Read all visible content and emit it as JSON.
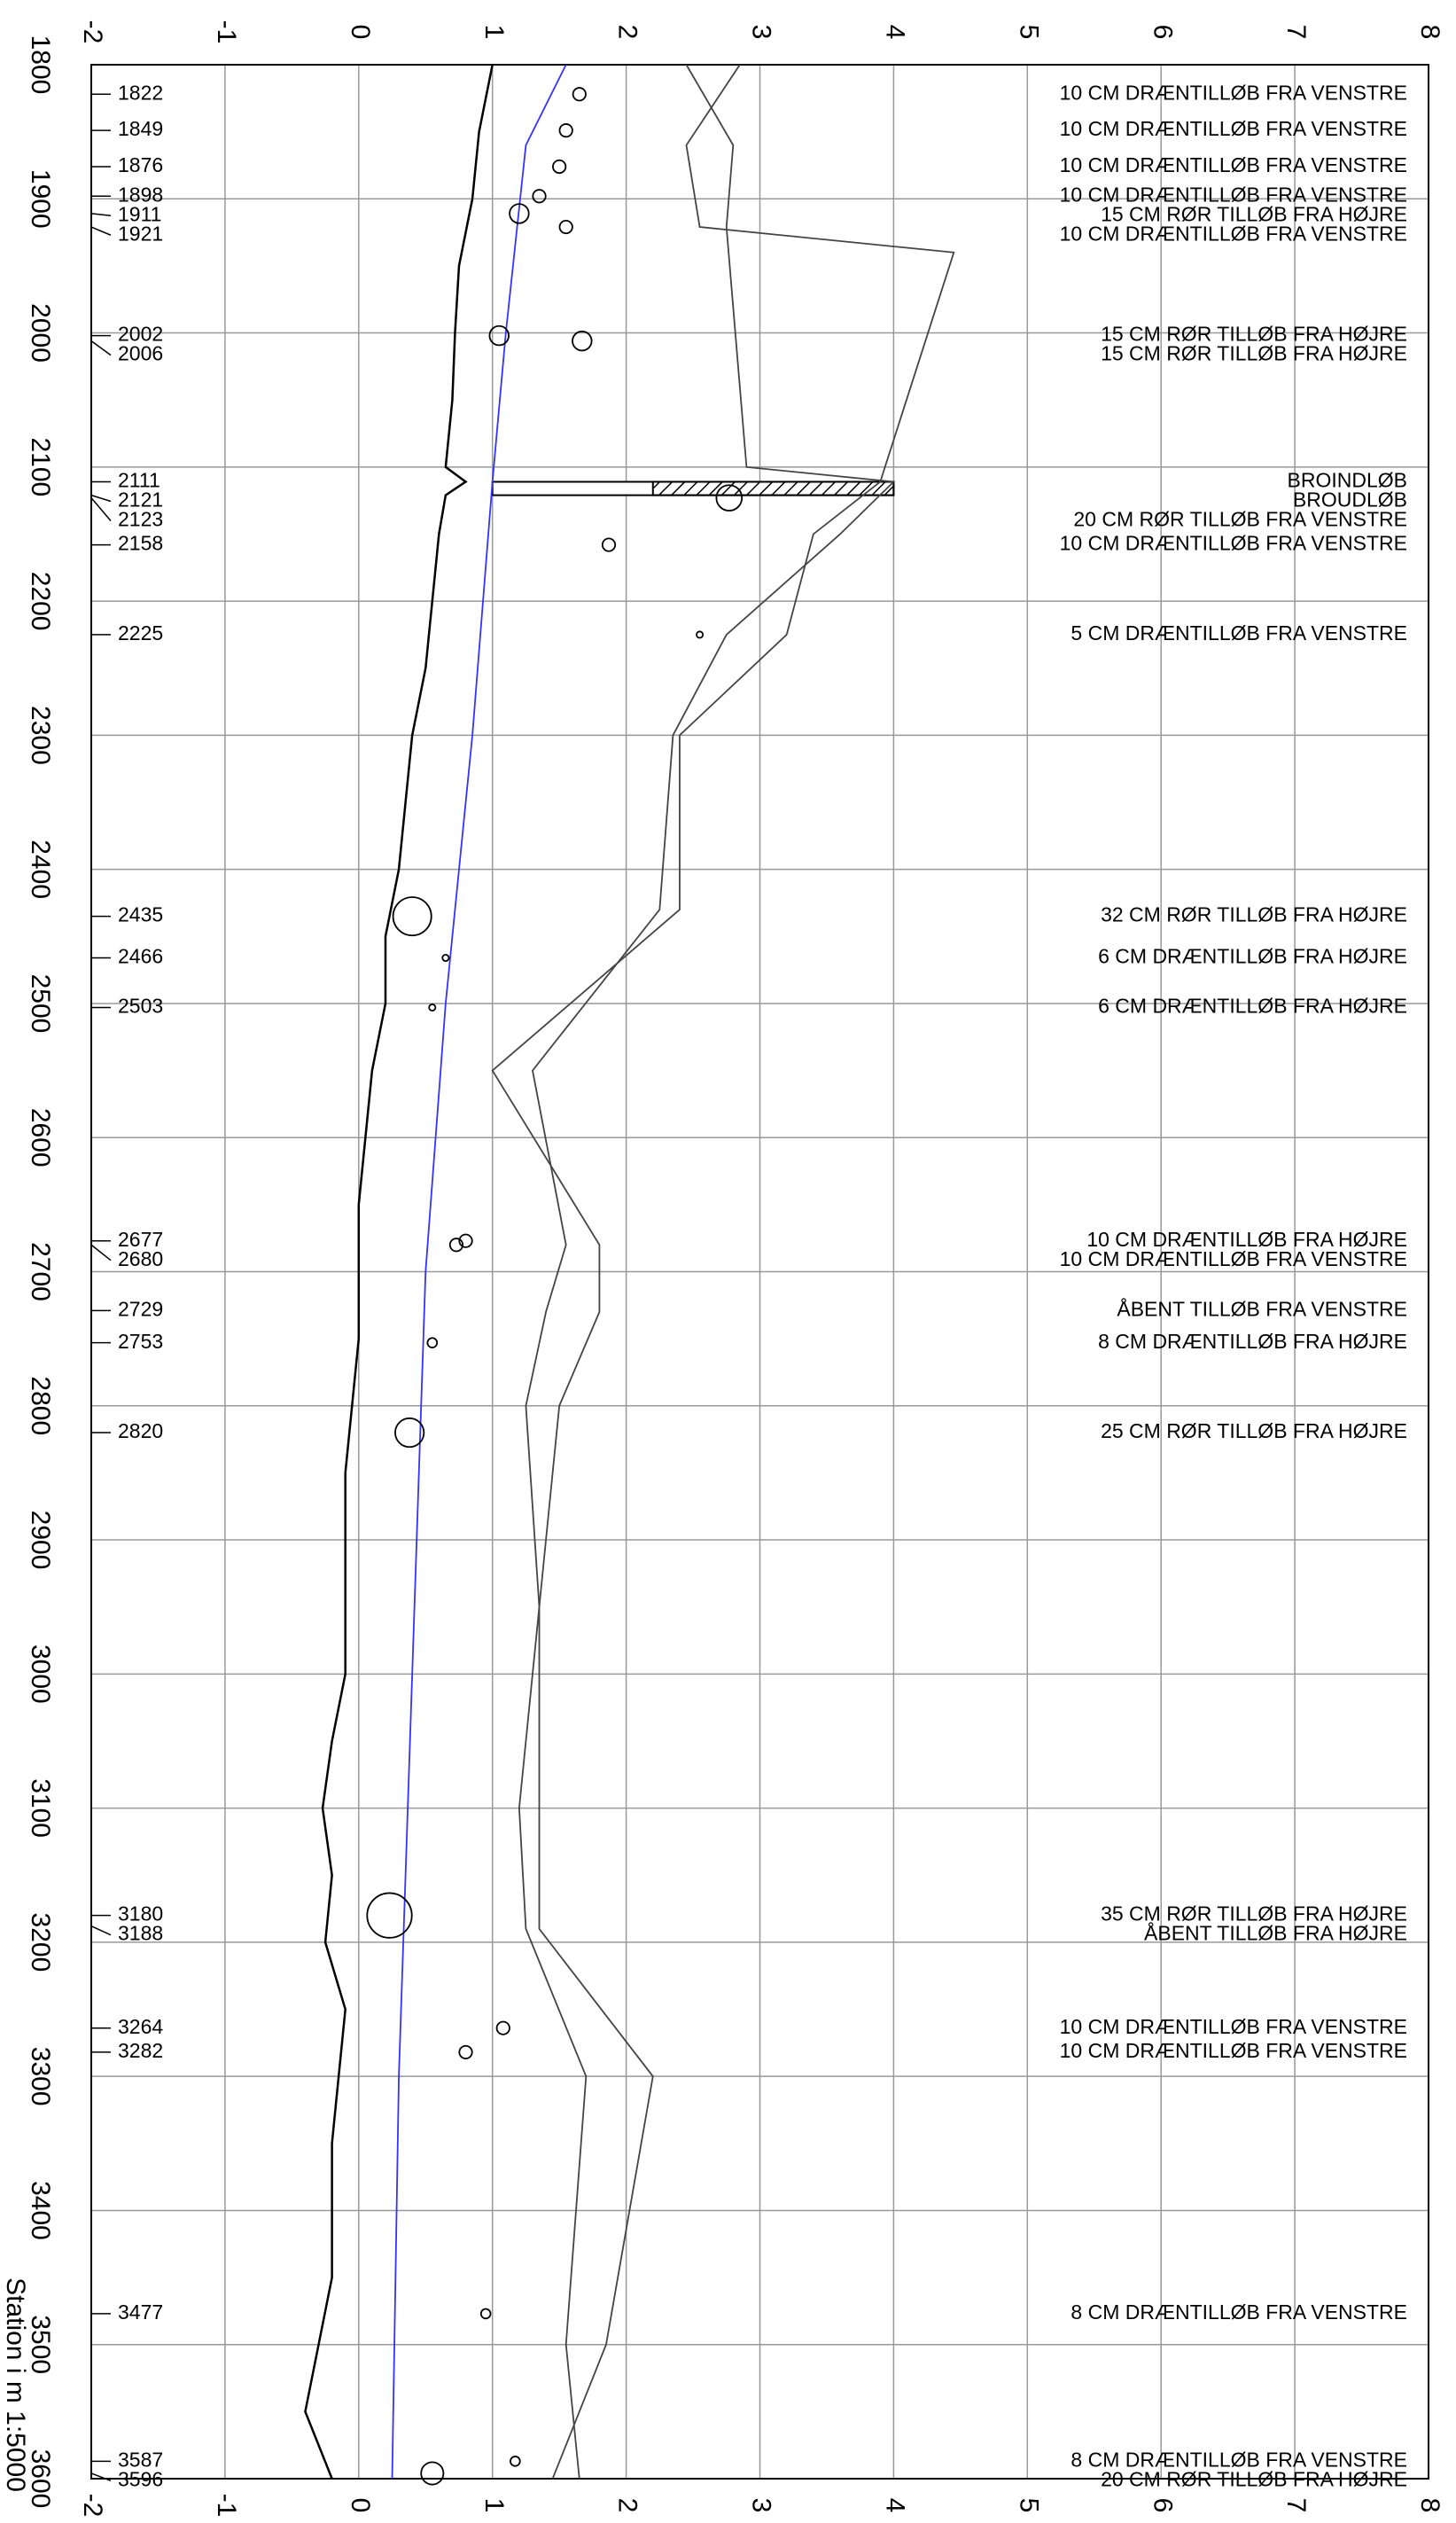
{
  "chart_data": {
    "type": "line",
    "xlabel": "Station i m  1:5000",
    "xlim": [
      -2,
      8
    ],
    "xticks": [
      -2,
      -1,
      0,
      1,
      2,
      3,
      4,
      5,
      6,
      7,
      8
    ],
    "ylim": [
      1800,
      3600
    ],
    "yticks": [
      1800,
      1900,
      2000,
      2100,
      2200,
      2300,
      2400,
      2500,
      2600,
      2700,
      2800,
      2900,
      3000,
      3100,
      3200,
      3300,
      3400,
      3500,
      3600
    ],
    "grid": true,
    "series": [
      {
        "color": "#000000",
        "stations": [
          1800,
          1850,
          1900,
          1950,
          2000,
          2050,
          2100,
          2111,
          2121,
          2150,
          2200,
          2250,
          2300,
          2350,
          2400,
          2450,
          2500,
          2550,
          2600,
          2650,
          2700,
          2750,
          2800,
          2850,
          2900,
          2950,
          3000,
          3050,
          3100,
          3150,
          3200,
          3250,
          3300,
          3350,
          3400,
          3450,
          3500,
          3550,
          3600
        ],
        "values": [
          1.0,
          0.9,
          0.85,
          0.75,
          0.72,
          0.7,
          0.65,
          0.8,
          0.65,
          0.6,
          0.55,
          0.5,
          0.4,
          0.35,
          0.3,
          0.2,
          0.2,
          0.1,
          0.05,
          0.0,
          0.0,
          0.0,
          -0.05,
          -0.1,
          -0.1,
          -0.1,
          -0.1,
          -0.2,
          -0.27,
          -0.2,
          -0.25,
          -0.1,
          -0.15,
          -0.2,
          -0.2,
          -0.2,
          -0.3,
          -0.4,
          -0.2
        ]
      },
      {
        "color": "#3333ff",
        "stations": [
          1800,
          1860,
          2000,
          2111,
          2300,
          2500,
          2700,
          3000,
          3300,
          3600
        ],
        "values": [
          1.55,
          1.25,
          1.1,
          1.0,
          0.85,
          0.65,
          0.5,
          0.4,
          0.3,
          0.25
        ]
      },
      {
        "color": "#444444",
        "stations": [
          1800,
          1860,
          1921,
          1940,
          2111,
          2150,
          2225,
          2300,
          2430,
          2550,
          2680,
          2730,
          2800,
          2950,
          3100,
          3190,
          3300,
          3500,
          3600
        ],
        "values": [
          2.85,
          2.45,
          2.55,
          4.45,
          3.9,
          3.4,
          3.2,
          2.4,
          2.4,
          1.0,
          1.8,
          1.8,
          1.5,
          1.35,
          1.35,
          1.35,
          2.2,
          1.85,
          1.45
        ]
      },
      {
        "color": "#444444",
        "stations": [
          1800,
          1860,
          1921,
          2100,
          2111,
          2150,
          2225,
          2300,
          2430,
          2550,
          2680,
          2730,
          2800,
          2950,
          3100,
          3190,
          3300,
          3500,
          3600
        ],
        "values": [
          2.45,
          2.8,
          2.75,
          2.9,
          4.0,
          3.6,
          2.75,
          2.35,
          2.25,
          1.3,
          1.55,
          1.4,
          1.25,
          1.35,
          1.2,
          1.25,
          1.7,
          1.55,
          1.65
        ]
      }
    ],
    "culvert": {
      "stations": [
        2111,
        2121
      ],
      "x": [
        1.0,
        4.0
      ],
      "hatch_from": 2.2
    },
    "inlets": [
      {
        "station": 1822,
        "value": 1.65,
        "size": 4,
        "label": "10 CM DRÆNTILLØB FRA VENSTRE"
      },
      {
        "station": 1849,
        "value": 1.55,
        "size": 4,
        "label": "10 CM DRÆNTILLØB FRA VENSTRE"
      },
      {
        "station": 1876,
        "value": 1.5,
        "size": 4,
        "label": "10 CM DRÆNTILLØB FRA VENSTRE"
      },
      {
        "station": 1898,
        "value": 1.35,
        "size": 4,
        "label": "10 CM DRÆNTILLØB FRA VENSTRE"
      },
      {
        "station": 1911,
        "value": 1.2,
        "size": 6,
        "label": "15 CM RØR TILLØB FRA HØJRE"
      },
      {
        "station": 1921,
        "value": 1.55,
        "size": 4,
        "label": "10 CM DRÆNTILLØB FRA VENSTRE"
      },
      {
        "station": 2002,
        "value": 1.05,
        "size": 6,
        "label": "15 CM RØR TILLØB FRA HØJRE"
      },
      {
        "station": 2006,
        "value": 1.67,
        "size": 6,
        "label": "15 CM RØR TILLØB FRA HØJRE"
      },
      {
        "station": 2111,
        "value": null,
        "size": null,
        "label": "BROINDLØB"
      },
      {
        "station": 2121,
        "value": null,
        "size": null,
        "label": "BROUDLØB"
      },
      {
        "station": 2123,
        "value": 2.77,
        "size": 8,
        "label": "20 CM RØR TILLØB FRA VENSTRE"
      },
      {
        "station": 2158,
        "value": 1.87,
        "size": 4,
        "label": "10 CM DRÆNTILLØB FRA VENSTRE"
      },
      {
        "station": 2225,
        "value": 2.55,
        "size": 2,
        "label": "5 CM DRÆNTILLØB FRA VENSTRE"
      },
      {
        "station": 2435,
        "value": 0.4,
        "size": 12,
        "label": "32 CM RØR TILLØB FRA HØJRE"
      },
      {
        "station": 2466,
        "value": 0.65,
        "size": 2,
        "label": "6 CM DRÆNTILLØB FRA HØJRE"
      },
      {
        "station": 2503,
        "value": 0.55,
        "size": 2,
        "label": "6 CM DRÆNTILLØB FRA HØJRE"
      },
      {
        "station": 2677,
        "value": 0.8,
        "size": 4,
        "label": "10 CM DRÆNTILLØB FRA HØJRE"
      },
      {
        "station": 2680,
        "value": 0.73,
        "size": 4,
        "label": "10 CM DRÆNTILLØB FRA VENSTRE"
      },
      {
        "station": 2729,
        "value": null,
        "size": null,
        "label": "ÅBENT TILLØB FRA VENSTRE"
      },
      {
        "station": 2753,
        "value": 0.55,
        "size": 3,
        "label": "8 CM DRÆNTILLØB FRA HØJRE"
      },
      {
        "station": 2820,
        "value": 0.38,
        "size": 9,
        "label": "25 CM RØR TILLØB FRA HØJRE"
      },
      {
        "station": 3180,
        "value": 0.23,
        "size": 14,
        "label": "35 CM RØR TILLØB FRA HØJRE"
      },
      {
        "station": 3188,
        "value": null,
        "size": null,
        "label": "ÅBENT TILLØB FRA HØJRE"
      },
      {
        "station": 3264,
        "value": 1.08,
        "size": 4,
        "label": "10 CM DRÆNTILLØB FRA VENSTRE"
      },
      {
        "station": 3282,
        "value": 0.8,
        "size": 4,
        "label": "10 CM DRÆNTILLØB FRA VENSTRE"
      },
      {
        "station": 3477,
        "value": 0.95,
        "size": 3,
        "label": "8 CM DRÆNTILLØB FRA VENSTRE"
      },
      {
        "station": 3587,
        "value": 1.17,
        "size": 3,
        "label": "8 CM DRÆNTILLØB FRA VENSTRE"
      },
      {
        "station": 3596,
        "value": 0.55,
        "size": 7,
        "label": "20 CM RØR TILLØB FRA HØJRE"
      }
    ]
  }
}
